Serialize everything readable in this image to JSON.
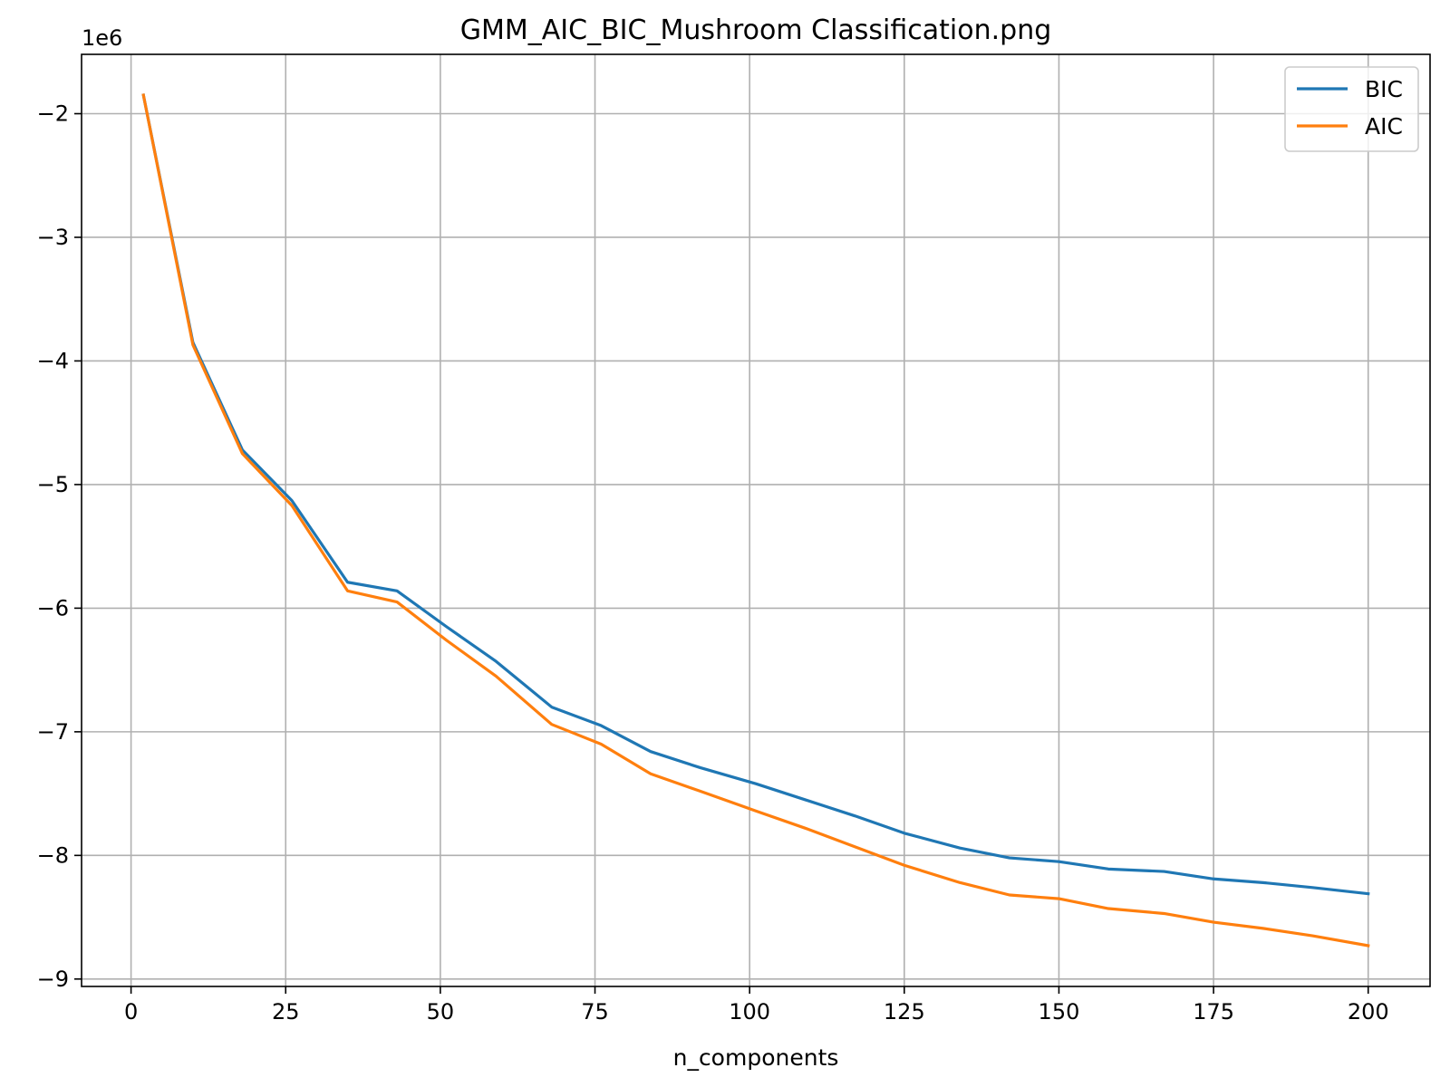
{
  "chart_data": {
    "type": "line",
    "title": "GMM_AIC_BIC_Mushroom Classification.png",
    "xlabel": "n_components",
    "ylabel": "",
    "y_offset_text": "1e6",
    "xlim": [
      -8,
      210
    ],
    "ylim": [
      -9.06,
      -1.52
    ],
    "x_ticks": [
      0,
      25,
      50,
      75,
      100,
      125,
      150,
      175,
      200
    ],
    "x_tick_labels": [
      "0",
      "25",
      "50",
      "75",
      "100",
      "125",
      "150",
      "175",
      "200"
    ],
    "y_ticks": [
      -2,
      -3,
      -4,
      -5,
      -6,
      -7,
      -8,
      -9
    ],
    "y_tick_labels": [
      "−2",
      "−3",
      "−4",
      "−5",
      "−6",
      "−7",
      "−8",
      "−9"
    ],
    "grid": true,
    "legend_position": "top-right",
    "x": [
      2,
      10,
      18,
      26,
      35,
      43,
      51,
      59,
      68,
      76,
      84,
      92,
      101,
      109,
      117,
      125,
      134,
      142,
      150,
      158,
      167,
      175,
      183,
      191,
      200
    ],
    "series": [
      {
        "name": "BIC",
        "color": "#1f77b4",
        "values": [
          -1.85,
          -3.85,
          -4.72,
          -5.13,
          -5.79,
          -5.86,
          -6.15,
          -6.43,
          -6.8,
          -6.95,
          -7.16,
          -7.29,
          -7.42,
          -7.55,
          -7.68,
          -7.82,
          -7.94,
          -8.02,
          -8.05,
          -8.11,
          -8.13,
          -8.19,
          -8.22,
          -8.26,
          -8.31
        ]
      },
      {
        "name": "AIC",
        "color": "#ff7f0e",
        "values": [
          -1.85,
          -3.87,
          -4.75,
          -5.17,
          -5.86,
          -5.95,
          -6.26,
          -6.55,
          -6.94,
          -7.1,
          -7.34,
          -7.48,
          -7.64,
          -7.78,
          -7.93,
          -8.08,
          -8.22,
          -8.32,
          -8.35,
          -8.43,
          -8.47,
          -8.54,
          -8.59,
          -8.65,
          -8.73
        ]
      }
    ]
  }
}
